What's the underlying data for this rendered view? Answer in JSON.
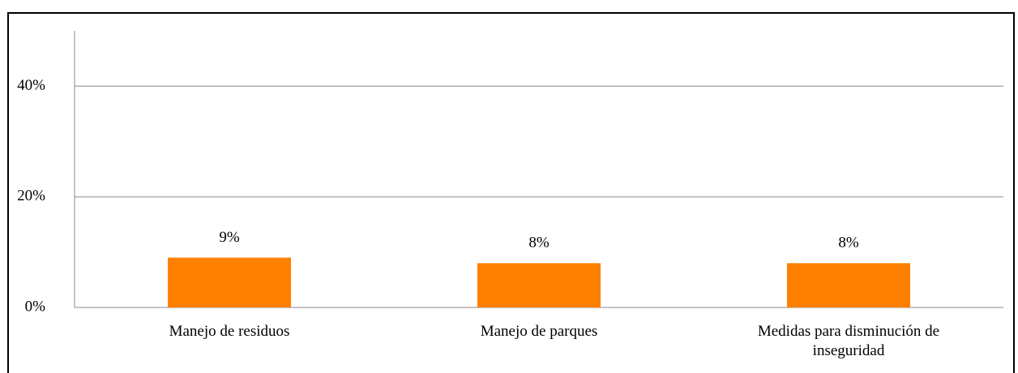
{
  "chart_data": {
    "type": "bar",
    "categories": [
      "Manejo de residuos",
      "Manejo de parques",
      "Medidas para disminución de inseguridad"
    ],
    "values": [
      9,
      8,
      8
    ],
    "value_labels": [
      "9%",
      "8%",
      "8%"
    ],
    "color": "#ff8000",
    "ylim": [
      0,
      50
    ],
    "yticks": [
      {
        "value": 0,
        "label": "0%"
      },
      {
        "value": 20,
        "label": "20%"
      },
      {
        "value": 40,
        "label": "40%"
      }
    ],
    "grid": true
  }
}
